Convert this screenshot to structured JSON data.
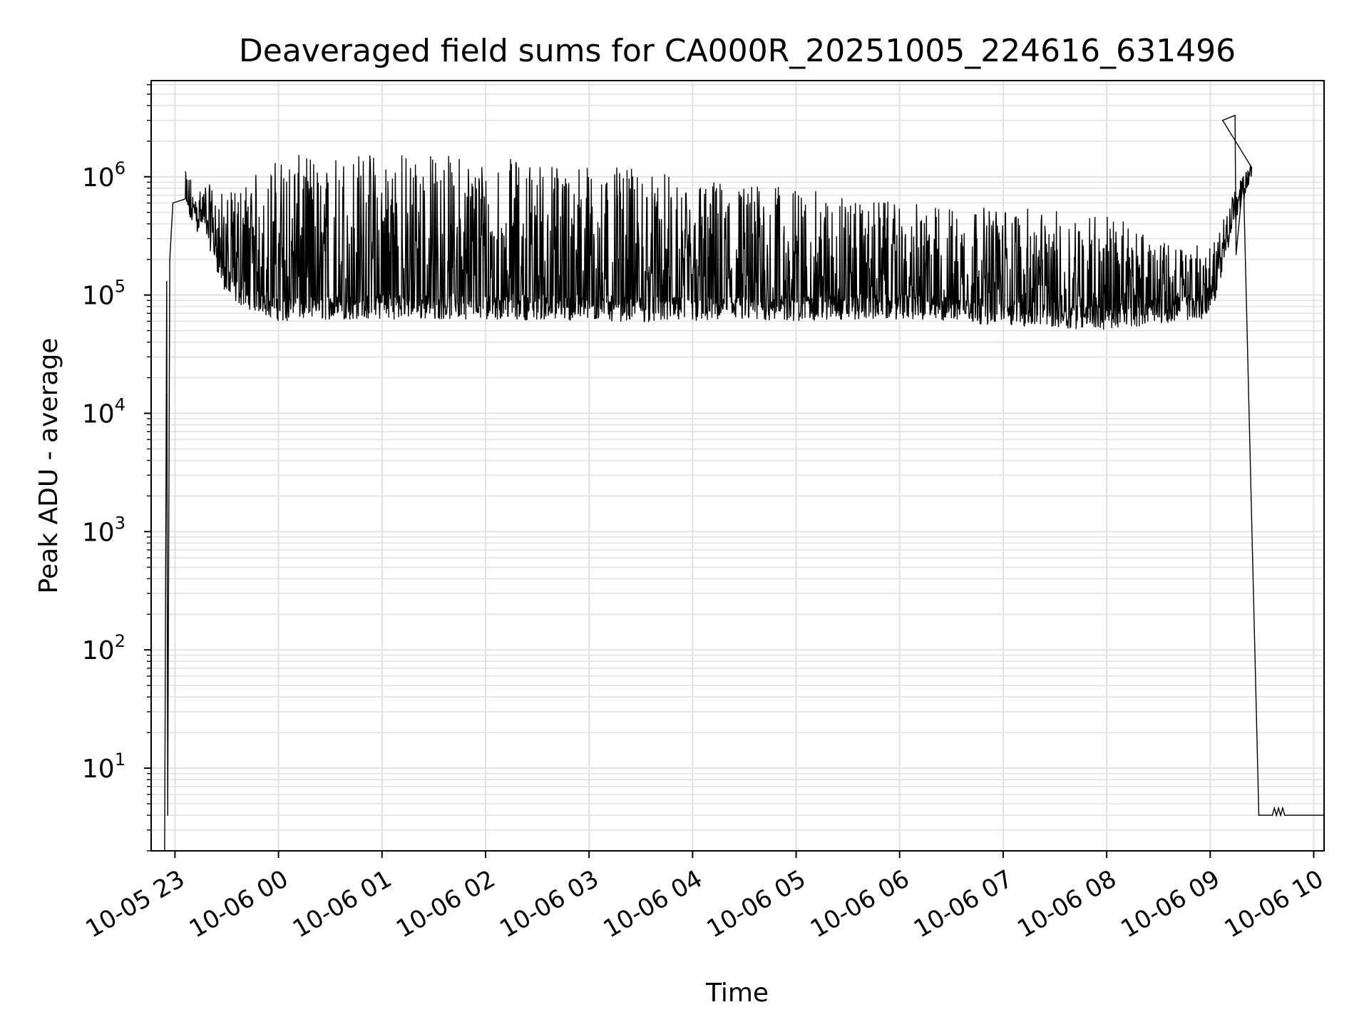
{
  "chart_data": {
    "type": "line",
    "title": "Deaveraged field sums for CA000R_20251005_224616_631496",
    "xlabel": "Time",
    "ylabel": "Peak ADU - average",
    "yscale": "log",
    "ylim": [
      2,
      6500000
    ],
    "x_range_hours": [
      -0.23,
      11.1
    ],
    "x_ticks": [
      {
        "label": "10-05 23",
        "hour": 0
      },
      {
        "label": "10-06 00",
        "hour": 1
      },
      {
        "label": "10-06 01",
        "hour": 2
      },
      {
        "label": "10-06 02",
        "hour": 3
      },
      {
        "label": "10-06 03",
        "hour": 4
      },
      {
        "label": "10-06 04",
        "hour": 5
      },
      {
        "label": "10-06 05",
        "hour": 6
      },
      {
        "label": "10-06 06",
        "hour": 7
      },
      {
        "label": "10-06 07",
        "hour": 8
      },
      {
        "label": "10-06 08",
        "hour": 9
      },
      {
        "label": "10-06 09",
        "hour": 10
      },
      {
        "label": "10-06 10",
        "hour": 11
      }
    ],
    "y_ticks": [
      {
        "base": "10",
        "exp": "1",
        "value": 10
      },
      {
        "base": "10",
        "exp": "2",
        "value": 100
      },
      {
        "base": "10",
        "exp": "3",
        "value": 1000
      },
      {
        "base": "10",
        "exp": "4",
        "value": 10000
      },
      {
        "base": "10",
        "exp": "5",
        "value": 100000
      },
      {
        "base": "10",
        "exp": "6",
        "value": 1000000
      }
    ],
    "grid": true,
    "series": [
      {
        "name": "Peak ADU - average",
        "color": "#000000",
        "envelope": [
          {
            "hour": 0.1,
            "low": 400000,
            "high": 1100000
          },
          {
            "hour": 0.3,
            "low": 300000,
            "high": 900000
          },
          {
            "hour": 0.5,
            "low": 90000,
            "high": 700000
          },
          {
            "hour": 1.0,
            "low": 60000,
            "high": 1500000
          },
          {
            "hour": 2.0,
            "low": 62000,
            "high": 1700000
          },
          {
            "hour": 3.0,
            "low": 62000,
            "high": 1500000
          },
          {
            "hour": 4.0,
            "low": 60000,
            "high": 1300000
          },
          {
            "hour": 5.0,
            "low": 58000,
            "high": 1000000
          },
          {
            "hour": 6.0,
            "low": 60000,
            "high": 800000
          },
          {
            "hour": 7.0,
            "low": 62000,
            "high": 600000
          },
          {
            "hour": 8.0,
            "low": 55000,
            "high": 550000
          },
          {
            "hour": 9.0,
            "low": 50000,
            "high": 500000
          },
          {
            "hour": 9.7,
            "low": 60000,
            "high": 250000
          },
          {
            "hour": 10.0,
            "low": 62000,
            "high": 300000
          },
          {
            "hour": 10.2,
            "low": 300000,
            "high": 700000
          },
          {
            "hour": 10.4,
            "low": 900000,
            "high": 1300000
          }
        ],
        "points": [
          {
            "hour": -0.1,
            "value": 2
          },
          {
            "hour": -0.08,
            "value": 130000
          },
          {
            "hour": -0.07,
            "value": 4
          },
          {
            "hour": -0.05,
            "value": 200000
          },
          {
            "hour": 0.1,
            "value": 1100000
          },
          {
            "hour": 10.12,
            "value": 3000000
          },
          {
            "hour": 10.24,
            "value": 3300000
          },
          {
            "hour": 10.25,
            "value": 220000
          },
          {
            "hour": 10.32,
            "value": 1000000
          },
          {
            "hour": 10.47,
            "value": 4
          },
          {
            "hour": 10.6,
            "value": 4
          },
          {
            "hour": 10.62,
            "value": 4.6
          },
          {
            "hour": 10.64,
            "value": 4
          },
          {
            "hour": 10.66,
            "value": 4.6
          },
          {
            "hour": 10.68,
            "value": 4
          },
          {
            "hour": 10.7,
            "value": 4.6
          },
          {
            "hour": 10.72,
            "value": 4
          },
          {
            "hour": 11.1,
            "value": 4
          }
        ]
      }
    ]
  }
}
